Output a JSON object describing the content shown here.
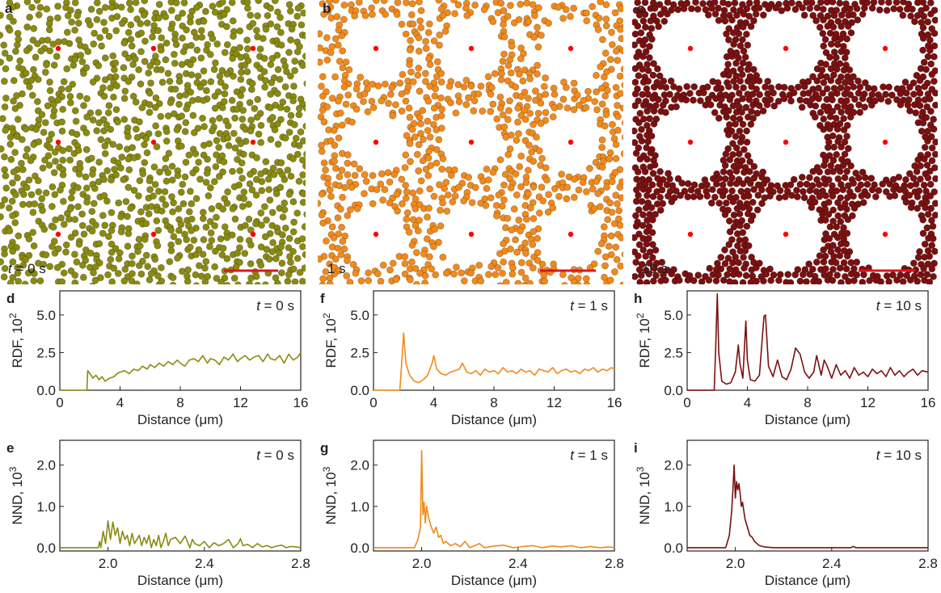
{
  "panels": {
    "a": {
      "letter": "a",
      "time": "t = 0 s",
      "time_italic": "t",
      "time_rest": " = 0 s"
    },
    "b": {
      "letter": "b",
      "time": "1 s"
    },
    "c": {
      "letter": "c",
      "time": "10 s"
    }
  },
  "colors": {
    "t0": "#8a8a12",
    "t1": "#f08a1c",
    "t10": "#7a1010",
    "marker": "#ff0000",
    "scale_bar": "#e0141e"
  },
  "chart_data": [
    {
      "id": "d",
      "letter": "d",
      "type": "line",
      "annotation_t": "t",
      "annotation_rest": " = 0 s",
      "ylabel": "RDF, 10",
      "ylabel_exp": "2",
      "xlabel": "Distance (μm)",
      "xlim": [
        0,
        16
      ],
      "ylim": [
        0,
        6.6
      ],
      "xticks": [
        0,
        4,
        8,
        12,
        16
      ],
      "yticks": [
        0.0,
        2.5,
        5.0
      ],
      "ytick_labels": [
        "0.0",
        "2.5",
        "5.0"
      ],
      "color": "#8a8a12",
      "x": [
        0,
        1.8,
        1.85,
        2.0,
        2.2,
        2.4,
        2.6,
        2.8,
        3.0,
        3.3,
        3.6,
        3.8,
        4.0,
        4.3,
        4.6,
        4.9,
        5.2,
        5.5,
        5.8,
        6.0,
        6.3,
        6.6,
        6.9,
        7.2,
        7.5,
        7.8,
        8.0,
        8.3,
        8.6,
        8.9,
        9.2,
        9.5,
        9.8,
        10.0,
        10.3,
        10.6,
        10.9,
        11.2,
        11.5,
        11.8,
        12.0,
        12.3,
        12.6,
        12.9,
        13.2,
        13.5,
        13.8,
        14.0,
        14.3,
        14.6,
        14.9,
        15.2,
        15.5,
        15.8,
        16.0
      ],
      "y": [
        0.0,
        0.0,
        1.3,
        1.1,
        0.8,
        1.0,
        0.7,
        0.9,
        0.6,
        0.8,
        0.9,
        1.1,
        1.2,
        1.3,
        1.1,
        1.4,
        1.3,
        1.6,
        1.4,
        1.7,
        1.5,
        1.8,
        1.6,
        1.9,
        1.7,
        2.0,
        1.8,
        1.6,
        2.0,
        2.1,
        1.9,
        2.3,
        1.8,
        2.1,
        2.0,
        1.7,
        2.2,
        2.0,
        2.4,
        1.9,
        2.1,
        2.3,
        2.0,
        2.2,
        2.3,
        1.9,
        2.4,
        2.1,
        2.0,
        2.3,
        1.8,
        2.4,
        2.0,
        2.2,
        2.5
      ]
    },
    {
      "id": "f",
      "letter": "f",
      "type": "line",
      "annotation_t": "t",
      "annotation_rest": " = 1 s",
      "ylabel": "RDF, 10",
      "ylabel_exp": "2",
      "xlabel": "Distance (μm)",
      "xlim": [
        0,
        16
      ],
      "ylim": [
        0,
        6.6
      ],
      "xticks": [
        0,
        4,
        8,
        12,
        16
      ],
      "yticks": [
        0.0,
        2.5,
        5.0
      ],
      "ytick_labels": [
        "0.0",
        "2.5",
        "5.0"
      ],
      "color": "#f08a1c",
      "x": [
        0,
        1.75,
        1.85,
        2.0,
        2.15,
        2.4,
        2.7,
        3.0,
        3.3,
        3.6,
        3.9,
        4.0,
        4.2,
        4.5,
        4.8,
        5.1,
        5.4,
        5.7,
        5.9,
        6.2,
        6.5,
        6.8,
        7.1,
        7.4,
        7.7,
        8.0,
        8.3,
        8.6,
        8.9,
        9.2,
        9.5,
        9.8,
        10.1,
        10.4,
        10.7,
        11.0,
        11.3,
        11.6,
        11.9,
        12.2,
        12.5,
        12.8,
        13.1,
        13.4,
        13.7,
        14.0,
        14.3,
        14.6,
        14.9,
        15.2,
        15.5,
        15.8,
        16.0
      ],
      "y": [
        0.0,
        0.0,
        1.5,
        3.8,
        1.8,
        1.0,
        0.6,
        0.5,
        0.7,
        1.0,
        1.8,
        2.3,
        1.4,
        1.1,
        1.0,
        1.2,
        1.3,
        1.4,
        1.8,
        1.2,
        1.1,
        1.3,
        1.0,
        1.4,
        1.2,
        1.3,
        1.1,
        1.5,
        1.2,
        1.3,
        1.1,
        1.4,
        1.2,
        1.3,
        1.0,
        1.4,
        1.3,
        1.2,
        1.5,
        1.1,
        1.3,
        1.4,
        1.2,
        1.3,
        1.1,
        1.4,
        1.3,
        1.5,
        1.2,
        1.4,
        1.3,
        1.5,
        1.4
      ]
    },
    {
      "id": "h",
      "letter": "h",
      "type": "line",
      "annotation_t": "t",
      "annotation_rest": " = 10 s",
      "ylabel": "RDF, 10",
      "ylabel_exp": "2",
      "xlabel": "Distance (μm)",
      "xlim": [
        0,
        16
      ],
      "ylim": [
        0,
        6.6
      ],
      "xticks": [
        0,
        4,
        8,
        12,
        16
      ],
      "yticks": [
        0.0,
        2.5,
        5.0
      ],
      "ytick_labels": [
        "0.0",
        "2.5",
        "5.0"
      ],
      "color": "#7a1010",
      "x": [
        0,
        1.8,
        1.9,
        2.0,
        2.1,
        2.3,
        2.6,
        2.9,
        3.2,
        3.4,
        3.5,
        3.7,
        3.9,
        4.0,
        4.2,
        4.5,
        4.8,
        5.1,
        5.2,
        5.4,
        5.7,
        6.0,
        6.3,
        6.6,
        6.9,
        7.2,
        7.5,
        7.8,
        8.1,
        8.4,
        8.6,
        8.9,
        9.1,
        9.3,
        9.6,
        9.9,
        10.2,
        10.5,
        10.8,
        11.1,
        11.4,
        11.7,
        12.0,
        12.3,
        12.6,
        12.9,
        13.2,
        13.5,
        13.8,
        14.1,
        14.4,
        14.7,
        15.0,
        15.3,
        15.6,
        16.0
      ],
      "y": [
        0.0,
        0.0,
        3.0,
        6.4,
        2.5,
        0.6,
        0.4,
        0.5,
        1.2,
        3.0,
        1.8,
        0.8,
        4.6,
        2.0,
        0.7,
        0.6,
        1.0,
        4.9,
        5.0,
        1.6,
        0.9,
        2.0,
        0.9,
        0.7,
        1.4,
        2.8,
        2.4,
        1.2,
        0.8,
        1.2,
        2.3,
        1.0,
        2.0,
        1.6,
        0.8,
        1.7,
        1.0,
        1.3,
        0.8,
        1.5,
        1.0,
        1.2,
        0.9,
        1.4,
        1.1,
        1.3,
        0.9,
        1.5,
        1.0,
        1.3,
        0.9,
        1.2,
        1.4,
        1.0,
        1.3,
        1.2
      ]
    },
    {
      "id": "e",
      "letter": "e",
      "type": "line",
      "annotation_t": "t",
      "annotation_rest": " = 0 s",
      "ylabel": "NND, 10",
      "ylabel_exp": "3",
      "xlabel": "Distance (μm)",
      "xlim": [
        1.8,
        2.8
      ],
      "ylim": [
        -0.08,
        2.6
      ],
      "xticks": [
        2.0,
        2.4,
        2.8
      ],
      "yticks": [
        0.0,
        1.0,
        2.0
      ],
      "ytick_labels": [
        "0.0",
        "1.0",
        "2.0"
      ],
      "color": "#8a8a12",
      "x": [
        1.8,
        1.96,
        1.965,
        1.97,
        1.98,
        1.99,
        2.0,
        2.01,
        2.02,
        2.03,
        2.04,
        2.05,
        2.06,
        2.07,
        2.08,
        2.09,
        2.1,
        2.11,
        2.12,
        2.13,
        2.14,
        2.15,
        2.16,
        2.17,
        2.18,
        2.19,
        2.2,
        2.21,
        2.22,
        2.23,
        2.24,
        2.25,
        2.26,
        2.28,
        2.3,
        2.32,
        2.34,
        2.35,
        2.36,
        2.38,
        2.4,
        2.42,
        2.44,
        2.46,
        2.48,
        2.5,
        2.52,
        2.54,
        2.55,
        2.56,
        2.58,
        2.6,
        2.62,
        2.64,
        2.66,
        2.68,
        2.7,
        2.72,
        2.74,
        2.76,
        2.78,
        2.8
      ],
      "y": [
        0.0,
        0.0,
        0.15,
        0.0,
        0.4,
        0.1,
        0.65,
        0.2,
        0.62,
        0.3,
        0.48,
        0.1,
        0.4,
        0.2,
        0.3,
        0.05,
        0.35,
        0.1,
        0.2,
        0.3,
        0.05,
        0.25,
        0.1,
        0.3,
        0.0,
        0.2,
        0.05,
        0.3,
        0.0,
        0.15,
        0.35,
        0.05,
        0.2,
        0.25,
        0.1,
        0.28,
        0.0,
        0.2,
        0.1,
        0.05,
        0.15,
        0.0,
        0.12,
        0.05,
        0.1,
        0.2,
        0.0,
        0.1,
        0.22,
        0.05,
        0.08,
        0.0,
        0.1,
        0.02,
        0.05,
        0.0,
        0.04,
        0.06,
        0.0,
        0.03,
        0.02,
        0.0
      ]
    },
    {
      "id": "g",
      "letter": "g",
      "type": "line",
      "annotation_t": "t",
      "annotation_rest": " = 1 s",
      "ylabel": "NND, 10",
      "ylabel_exp": "3",
      "xlabel": "Distance (μm)",
      "xlim": [
        1.8,
        2.8
      ],
      "ylim": [
        -0.08,
        2.6
      ],
      "xticks": [
        2.0,
        2.4,
        2.8
      ],
      "yticks": [
        0.0,
        1.0,
        2.0
      ],
      "ytick_labels": [
        "0.0",
        "1.0",
        "2.0"
      ],
      "color": "#f08a1c",
      "x": [
        1.8,
        1.97,
        1.985,
        1.995,
        2.0,
        2.005,
        2.01,
        2.015,
        2.02,
        2.03,
        2.04,
        2.05,
        2.06,
        2.07,
        2.08,
        2.09,
        2.1,
        2.12,
        2.14,
        2.16,
        2.18,
        2.2,
        2.22,
        2.24,
        2.26,
        2.3,
        2.34,
        2.38,
        2.42,
        2.46,
        2.5,
        2.54,
        2.58,
        2.62,
        2.66,
        2.7,
        2.74,
        2.78,
        2.8
      ],
      "y": [
        0.0,
        0.0,
        0.2,
        0.5,
        2.35,
        0.8,
        1.1,
        0.6,
        1.0,
        0.7,
        0.5,
        0.35,
        0.5,
        0.25,
        0.3,
        0.1,
        0.15,
        0.05,
        0.1,
        0.02,
        0.15,
        0.0,
        0.05,
        0.1,
        0.0,
        0.04,
        0.06,
        0.0,
        0.03,
        0.05,
        0.0,
        0.04,
        0.02,
        0.05,
        0.0,
        0.03,
        0.0,
        0.02,
        0.0
      ]
    },
    {
      "id": "i",
      "letter": "i",
      "type": "line",
      "annotation_t": "t",
      "annotation_rest": " = 10 s",
      "ylabel": "NND, 10",
      "ylabel_exp": "3",
      "xlabel": "Distance (μm)",
      "xlim": [
        1.8,
        2.8
      ],
      "ylim": [
        -0.08,
        2.6
      ],
      "xticks": [
        2.0,
        2.4,
        2.8
      ],
      "yticks": [
        0.0,
        1.0,
        2.0
      ],
      "ytick_labels": [
        "0.0",
        "1.0",
        "2.0"
      ],
      "color": "#7a1010",
      "x": [
        1.8,
        1.96,
        1.975,
        1.985,
        1.99,
        1.995,
        2.0,
        2.005,
        2.01,
        2.015,
        2.02,
        2.025,
        2.03,
        2.04,
        2.05,
        2.06,
        2.07,
        2.08,
        2.09,
        2.1,
        2.12,
        2.14,
        2.16,
        2.2,
        2.3,
        2.4,
        2.48,
        2.49,
        2.5,
        2.6,
        2.7,
        2.8
      ],
      "y": [
        0.0,
        0.0,
        0.3,
        0.9,
        1.4,
        2.0,
        1.2,
        1.6,
        1.4,
        1.55,
        1.3,
        1.0,
        1.1,
        0.7,
        0.5,
        0.3,
        0.25,
        0.15,
        0.1,
        0.05,
        0.02,
        0.01,
        0.0,
        0.0,
        0.0,
        0.0,
        0.0,
        0.03,
        0.0,
        0.0,
        0.0,
        0.0
      ]
    }
  ]
}
